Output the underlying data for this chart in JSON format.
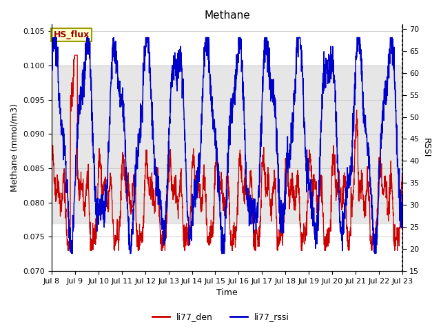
{
  "title": "Methane",
  "ylabel_left": "Methane (mmol/m3)",
  "ylabel_right": "RSSI",
  "xlabel": "Time",
  "ylim_left": [
    0.07,
    0.106
  ],
  "ylim_right": [
    15,
    71
  ],
  "yticks_left": [
    0.07,
    0.075,
    0.08,
    0.085,
    0.09,
    0.095,
    0.1,
    0.105
  ],
  "yticks_right": [
    15,
    20,
    25,
    30,
    35,
    40,
    45,
    50,
    55,
    60,
    65,
    70
  ],
  "xtick_labels": [
    "Jul 8",
    "Jul 9",
    "Jul 10",
    "Jul 11",
    "Jul 12",
    "Jul 13",
    "Jul 14",
    "Jul 15",
    "Jul 16",
    "Jul 17",
    "Jul 18",
    "Jul 19",
    "Jul 20",
    "Jul 21",
    "Jul 22",
    "Jul 23"
  ],
  "color_red": "#cc0000",
  "color_blue": "#0000cc",
  "legend_labels": [
    "li77_den",
    "li77_rssi"
  ],
  "annotation_text": "HS_flux",
  "annotation_color": "#990000",
  "annotation_bg": "#ffffcc",
  "annotation_border": "#999900",
  "shaded_ylim": [
    0.077,
    0.1
  ],
  "shaded_color": "#d3d3d3",
  "background_color": "#ffffff",
  "grid_color": "#cccccc",
  "title_fontsize": 11,
  "axis_fontsize": 9,
  "tick_fontsize": 8
}
